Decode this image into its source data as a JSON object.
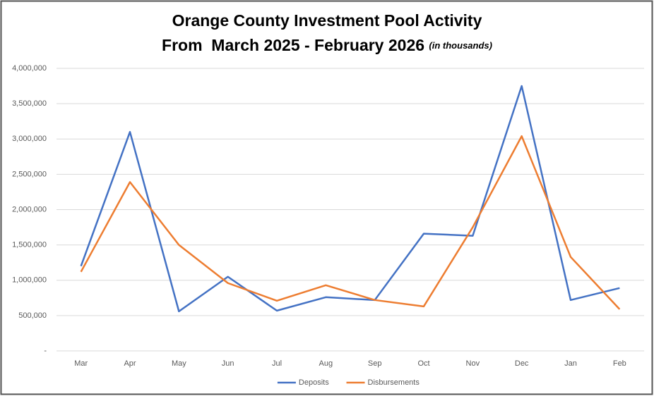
{
  "chart_data": {
    "type": "line",
    "title": [
      "Orange County Investment Pool Activity",
      "From  March 2025 - February 2026"
    ],
    "note": "(in thousands)",
    "categories": [
      "Mar",
      "Apr",
      "May",
      "Jun",
      "Jul",
      "Aug",
      "Sep",
      "Oct",
      "Nov",
      "Dec",
      "Jan",
      "Feb"
    ],
    "series": [
      {
        "name": "Deposits",
        "color": "#4472c4",
        "values": [
          1200000,
          3100000,
          560000,
          1050000,
          570000,
          760000,
          720000,
          1660000,
          1630000,
          3750000,
          720000,
          890000
        ]
      },
      {
        "name": "Disbursements",
        "color": "#ed7d31",
        "values": [
          1120000,
          2390000,
          1500000,
          960000,
          710000,
          930000,
          720000,
          630000,
          1750000,
          3040000,
          1330000,
          590000
        ]
      }
    ],
    "ylim": [
      0,
      4000000
    ],
    "yticks": [
      {
        "value": 0,
        "label": "-"
      },
      {
        "value": 500000,
        "label": "500,000"
      },
      {
        "value": 1000000,
        "label": "1,000,000"
      },
      {
        "value": 1500000,
        "label": "1,500,000"
      },
      {
        "value": 2000000,
        "label": "2,000,000"
      },
      {
        "value": 2500000,
        "label": "2,500,000"
      },
      {
        "value": 3000000,
        "label": "3,000,000"
      },
      {
        "value": 3500000,
        "label": "3,500,000"
      },
      {
        "value": 4000000,
        "label": "4,000,000"
      }
    ],
    "grid": true,
    "legend": "bottom"
  }
}
